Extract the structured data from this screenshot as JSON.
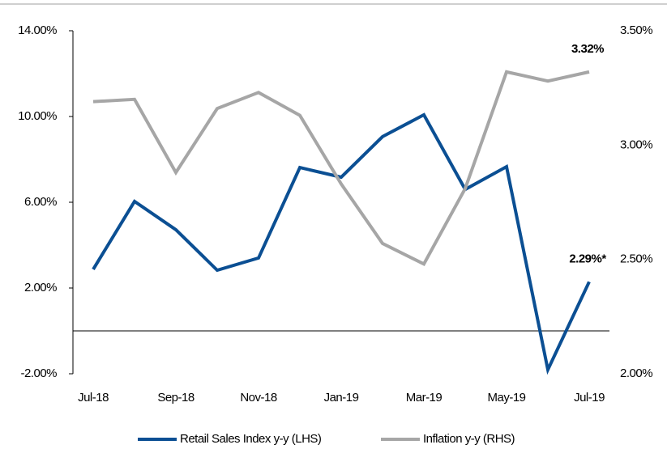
{
  "chart_data": {
    "type": "line",
    "categories": [
      "Jul-18",
      null,
      "Sep-18",
      null,
      "Nov-18",
      null,
      "Jan-19",
      null,
      "Mar-19",
      null,
      "May-19",
      null,
      "Jul-19"
    ],
    "series": [
      {
        "name": "Retail Sales Index y-y (LHS)",
        "color": "#0b4f93",
        "axis": "y",
        "values": [
          2.87,
          6.04,
          4.72,
          2.83,
          3.4,
          7.62,
          7.17,
          9.06,
          10.08,
          6.6,
          7.66,
          -1.81,
          2.29
        ],
        "value_labels": [
          null,
          null,
          null,
          null,
          null,
          null,
          null,
          null,
          null,
          null,
          null,
          null,
          "2.29%*"
        ]
      },
      {
        "name": "Inflation y-y (RHS)",
        "color": "#a6a6a6",
        "axis": "y2",
        "values": [
          3.19,
          3.2,
          2.88,
          3.16,
          3.23,
          3.13,
          2.83,
          2.57,
          2.48,
          2.81,
          3.32,
          3.28,
          3.32
        ],
        "value_labels": [
          null,
          null,
          null,
          null,
          null,
          null,
          null,
          null,
          null,
          null,
          null,
          null,
          "3.32%"
        ]
      }
    ],
    "ylim": [
      -2,
      14
    ],
    "yticks": [
      {
        "value": -2,
        "label": "-2.00%"
      },
      {
        "value": 2,
        "label": "2.00%"
      },
      {
        "value": 6,
        "label": "6.00%"
      },
      {
        "value": 10,
        "label": "10.00%"
      },
      {
        "value": 14,
        "label": "14.00%"
      }
    ],
    "y2lim": [
      2,
      3.5
    ],
    "y2ticks": [
      {
        "value": 2,
        "label": "2.00%"
      },
      {
        "value": 2.5,
        "label": "2.50%"
      },
      {
        "value": 3,
        "label": "3.00%"
      },
      {
        "value": 3.5,
        "label": "3.50%"
      }
    ],
    "legend": "bottom"
  }
}
